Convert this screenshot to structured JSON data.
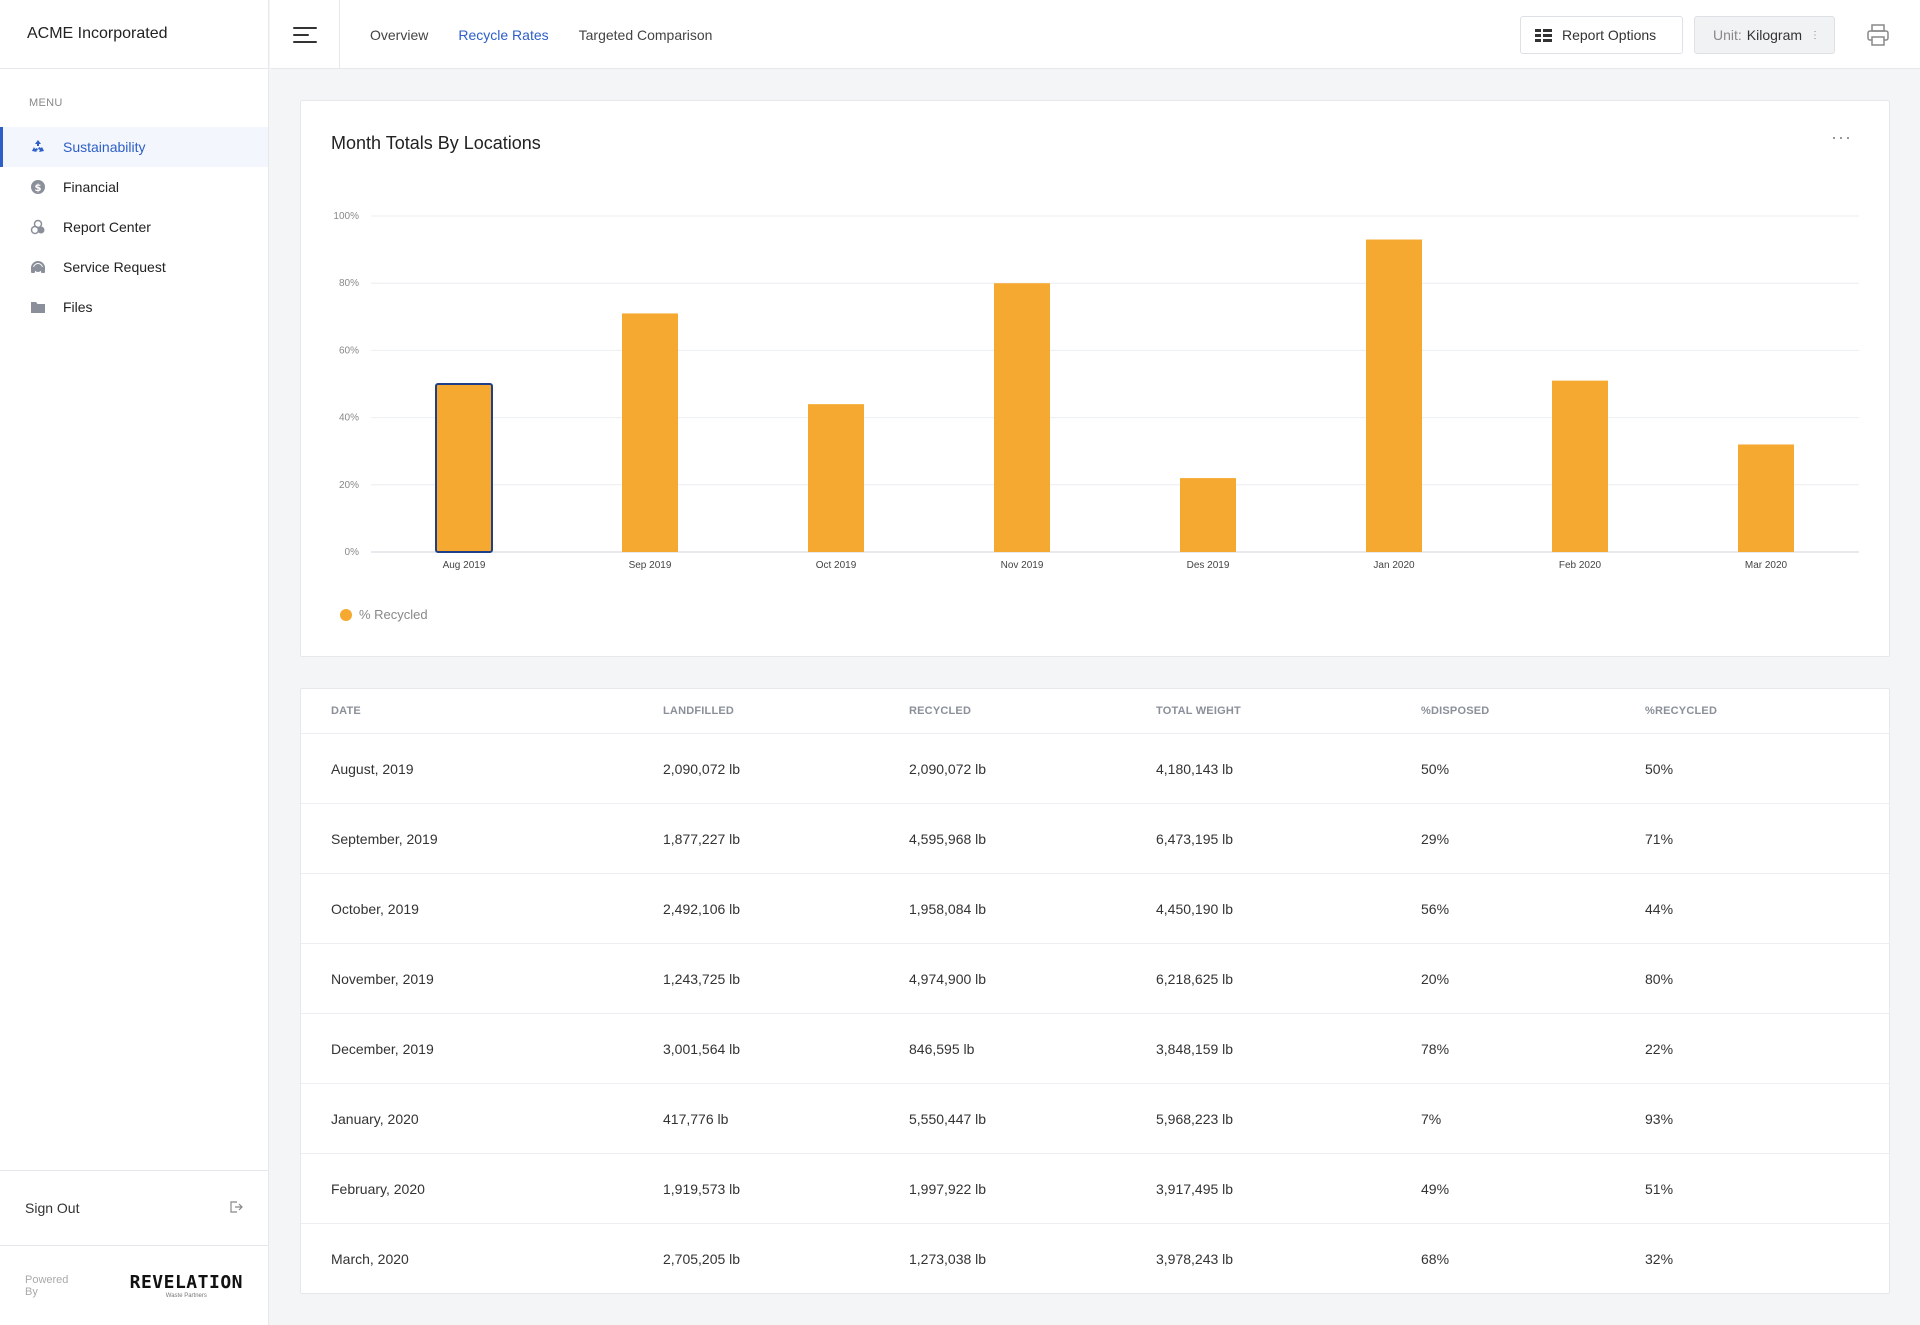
{
  "app": {
    "company": "ACME Incorporated"
  },
  "sidebar": {
    "menu_label": "MENU",
    "items": [
      {
        "label": "Sustainability",
        "icon": "recycle-icon",
        "active": true
      },
      {
        "label": "Financial",
        "icon": "dollar-icon",
        "active": false
      },
      {
        "label": "Report Center",
        "icon": "report-icon",
        "active": false
      },
      {
        "label": "Service Request",
        "icon": "headset-icon",
        "active": false
      },
      {
        "label": "Files",
        "icon": "folder-icon",
        "active": false
      }
    ],
    "sign_out": "Sign Out",
    "powered_by": "Powered By",
    "logo_text": "REVELATION",
    "logo_sub": "Waste Partners"
  },
  "topbar": {
    "tabs": [
      {
        "label": "Overview",
        "active": false
      },
      {
        "label": "Recycle Rates",
        "active": true
      },
      {
        "label": "Targeted Comparison",
        "active": false
      }
    ],
    "report_options": "Report Options",
    "unit_label": "Unit:",
    "unit_value": "Kilogram"
  },
  "chart_card": {
    "title": "Month Totals By Locations",
    "more": "···"
  },
  "chart_data": {
    "type": "bar",
    "title": "Month Totals By Locations",
    "categories": [
      "Aug 2019",
      "Sep 2019",
      "Oct 2019",
      "Nov 2019",
      "Des 2019",
      "Jan 2020",
      "Feb 2020",
      "Mar 2020"
    ],
    "series": [
      {
        "name": "% Recycled",
        "values": [
          50,
          71,
          44,
          80,
          22,
          93,
          51,
          32
        ]
      }
    ],
    "yticks": [
      "0%",
      "20%",
      "40%",
      "60%",
      "80%",
      "100%"
    ],
    "ylim": [
      0,
      100
    ],
    "grid": true,
    "legend": "bottom-left",
    "bar_color": "#f5a930",
    "highlight_index": 0,
    "highlight_color": "#1f3f8a"
  },
  "table": {
    "headers": [
      "DATE",
      "LANDFILLED",
      "RECYCLED",
      "TOTAL WEIGHT",
      "%DISPOSED",
      "%RECYCLED"
    ],
    "rows": [
      [
        "August, 2019",
        "2,090,072 lb",
        "2,090,072 lb",
        "4,180,143 lb",
        "50%",
        "50%"
      ],
      [
        "September, 2019",
        "1,877,227 lb",
        "4,595,968 lb",
        "6,473,195 lb",
        "29%",
        "71%"
      ],
      [
        "October, 2019",
        "2,492,106 lb",
        "1,958,084 lb",
        "4,450,190 lb",
        "56%",
        "44%"
      ],
      [
        "November, 2019",
        "1,243,725 lb",
        "4,974,900 lb",
        "6,218,625 lb",
        "20%",
        "80%"
      ],
      [
        "December, 2019",
        "3,001,564 lb",
        "846,595 lb",
        "3,848,159 lb",
        "78%",
        "22%"
      ],
      [
        "January, 2020",
        "417,776 lb",
        "5,550,447 lb",
        "5,968,223 lb",
        "7%",
        "93%"
      ],
      [
        "February, 2020",
        "1,919,573 lb",
        "1,997,922 lb",
        "3,917,495 lb",
        "49%",
        "51%"
      ],
      [
        "March, 2020",
        "2,705,205 lb",
        "1,273,038 lb",
        "3,978,243 lb",
        "68%",
        "32%"
      ]
    ]
  }
}
